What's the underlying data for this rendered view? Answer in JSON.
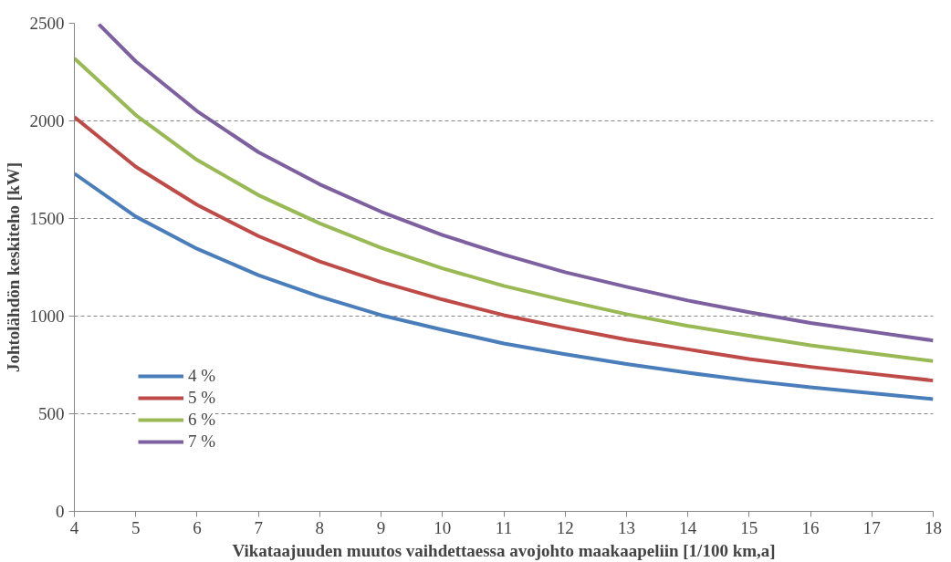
{
  "chart_data": {
    "type": "line",
    "xlabel": "Vikataajuuden muutos vaihdettaessa avojohto maakaapeliin [1/100 km,a]",
    "ylabel": "Johtolähdön keskiteho [kW]",
    "x": [
      4,
      5,
      6,
      7,
      8,
      9,
      10,
      11,
      12,
      13,
      14,
      15,
      16,
      17,
      18
    ],
    "series": [
      {
        "name": "4 %",
        "color": "#4a7ebb",
        "values": [
          1730,
          1510,
          1345,
          1210,
          1100,
          1005,
          930,
          860,
          805,
          755,
          710,
          670,
          635,
          605,
          575
        ]
      },
      {
        "name": "5 %",
        "color": "#be4b48",
        "values": [
          2020,
          1765,
          1570,
          1410,
          1280,
          1175,
          1085,
          1005,
          940,
          880,
          830,
          780,
          740,
          705,
          670
        ]
      },
      {
        "name": "6 %",
        "color": "#98b954",
        "values": [
          2320,
          2030,
          1800,
          1620,
          1475,
          1350,
          1245,
          1155,
          1080,
          1010,
          950,
          900,
          850,
          810,
          770
        ]
      },
      {
        "name": "7 %",
        "color": "#7d60a0",
        "x": [
          4.4,
          5,
          6,
          7,
          8,
          9,
          10,
          11,
          12,
          13,
          14,
          15,
          16,
          17,
          18
        ],
        "values": [
          2495,
          2305,
          2050,
          1840,
          1675,
          1535,
          1415,
          1315,
          1225,
          1150,
          1080,
          1020,
          965,
          920,
          875
        ]
      }
    ],
    "xlim": [
      4,
      18
    ],
    "xticks": [
      4,
      5,
      6,
      7,
      8,
      9,
      10,
      11,
      12,
      13,
      14,
      15,
      16,
      17,
      18
    ],
    "ylim": [
      0,
      2500
    ],
    "yticks": [
      0,
      500,
      1000,
      1500,
      2000,
      2500
    ],
    "grid": "y",
    "legend": "bottom left",
    "line_style": "solid",
    "marker": "none"
  }
}
